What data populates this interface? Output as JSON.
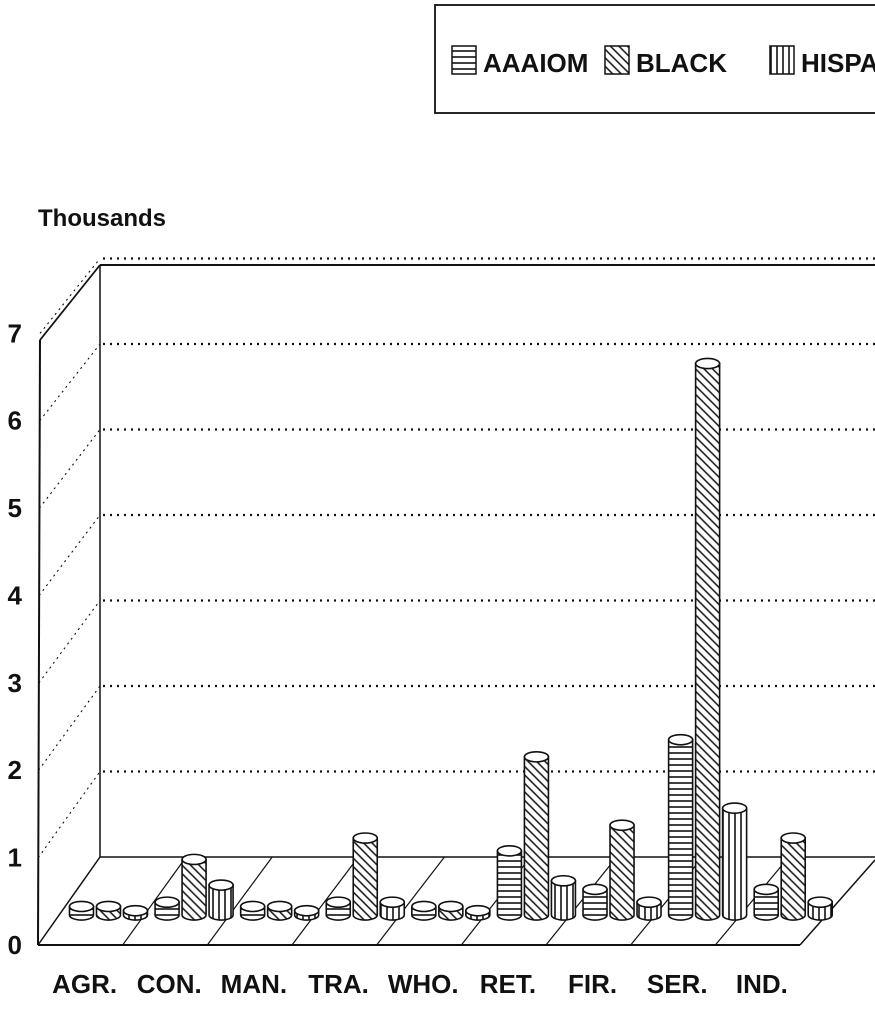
{
  "chart_data": {
    "type": "bar",
    "title": "",
    "ylabel": "Thousands",
    "xlabel": "",
    "categories": [
      "AGR.",
      "CON.",
      "MAN.",
      "TRA.",
      "WHO.",
      "RET.",
      "FIR.",
      "SER.",
      "IND."
    ],
    "series": [
      {
        "name": "AAAIOM",
        "pattern": "horizontal-lines",
        "values": [
          0.1,
          0.15,
          0.1,
          0.15,
          0.1,
          0.75,
          0.3,
          2.05,
          0.3
        ]
      },
      {
        "name": "BLACK",
        "pattern": "diagonal-lines",
        "values": [
          0.1,
          0.65,
          0.1,
          0.9,
          0.1,
          1.85,
          1.05,
          6.45,
          0.9
        ]
      },
      {
        "name": "HISPA",
        "pattern": "vertical-lines",
        "values": [
          0.05,
          0.35,
          0.05,
          0.15,
          0.05,
          0.4,
          0.15,
          1.25,
          0.15
        ]
      }
    ],
    "yticks": [
      "0",
      "1",
      "2",
      "3",
      "4",
      "5",
      "6",
      "7"
    ],
    "ylim": [
      0,
      7
    ],
    "grid": true,
    "legend": "top-right",
    "style": "3d-cylinder",
    "colors": {
      "ink": "#111111",
      "background": "#ffffff"
    }
  }
}
